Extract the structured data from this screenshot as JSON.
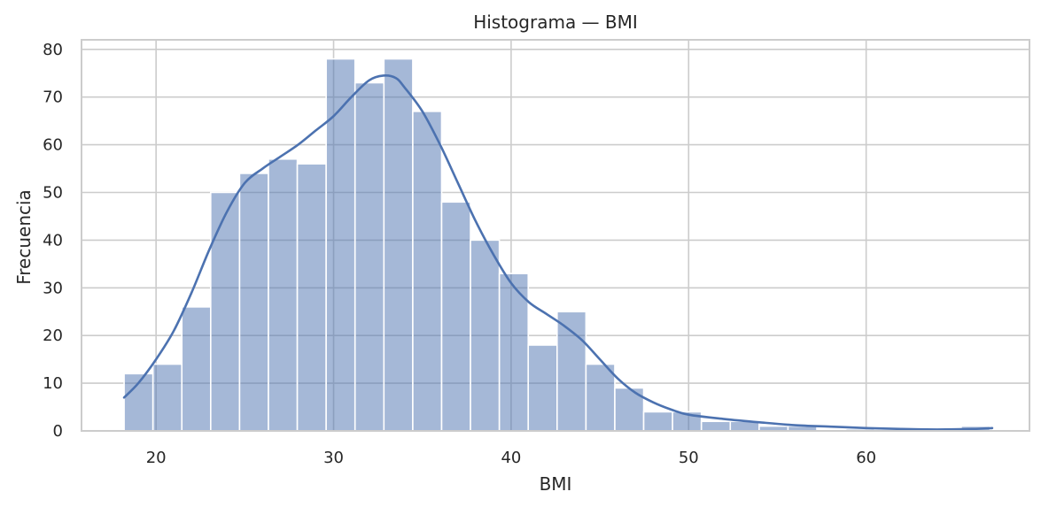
{
  "chart_data": {
    "type": "bar",
    "subtype": "histogram",
    "title": "Histograma — BMI",
    "xlabel": "BMI",
    "ylabel": "Frecuencia",
    "xlim": [
      15.8,
      69.2
    ],
    "ylim": [
      0,
      82
    ],
    "xticks": [
      20,
      30,
      40,
      50,
      60
    ],
    "yticks": [
      0,
      10,
      20,
      30,
      40,
      50,
      60,
      70,
      80
    ],
    "grid": true,
    "color": "#4c72b0",
    "bins": {
      "start": 18.2,
      "width": 1.626,
      "counts": [
        12,
        14,
        26,
        50,
        54,
        57,
        56,
        78,
        73,
        78,
        67,
        48,
        40,
        33,
        18,
        25,
        14,
        9,
        4,
        4,
        2,
        2,
        1,
        1,
        0,
        0.4,
        0,
        0,
        0,
        1
      ]
    },
    "kde": {
      "x": [
        18.2,
        19,
        20,
        21,
        22,
        23,
        24,
        25,
        26,
        27,
        28,
        29,
        30,
        31,
        32,
        32.8,
        33.5,
        34,
        35,
        36,
        37,
        38,
        39,
        40,
        41,
        42,
        43,
        44,
        45,
        46,
        47,
        48,
        49,
        50,
        52,
        54,
        56,
        58,
        60,
        62,
        64,
        66,
        67.1
      ],
      "y": [
        7,
        10,
        15,
        21,
        29,
        38,
        46,
        52,
        55,
        57.5,
        60,
        63,
        66,
        70,
        73.5,
        74.5,
        74,
        72,
        67,
        60,
        52,
        44,
        37,
        31,
        27,
        24.5,
        22,
        19,
        15,
        11,
        8,
        6,
        4.5,
        3.4,
        2.5,
        1.8,
        1.2,
        0.9,
        0.6,
        0.4,
        0.3,
        0.4,
        0.6
      ]
    }
  }
}
